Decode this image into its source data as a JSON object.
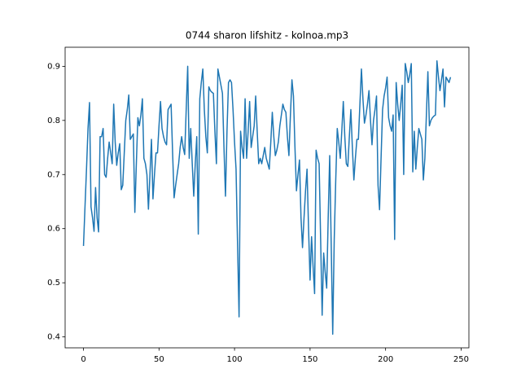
{
  "chart_data": {
    "type": "line",
    "title": "0744 sharon lifshitz - kolnoa.mp3",
    "x": [
      0,
      1,
      2,
      3,
      4,
      5,
      6,
      7,
      8,
      9,
      10,
      11,
      12,
      13,
      14,
      15,
      16,
      17,
      18,
      19,
      20,
      21,
      22,
      23,
      24,
      25,
      26,
      27,
      28,
      29,
      30,
      31,
      32,
      33,
      34,
      35,
      36,
      37,
      38,
      39,
      40,
      41,
      42,
      43,
      44,
      45,
      46,
      47,
      48,
      49,
      50,
      51,
      52,
      53,
      54,
      55,
      56,
      57,
      58,
      59,
      60,
      61,
      62,
      63,
      64,
      65,
      66,
      67,
      68,
      69,
      70,
      71,
      72,
      73,
      74,
      75,
      76,
      77,
      78,
      79,
      80,
      81,
      82,
      83,
      84,
      85,
      86,
      87,
      88,
      89,
      90,
      91,
      92,
      93,
      94,
      95,
      96,
      97,
      98,
      99,
      100,
      101,
      102,
      103,
      104,
      105,
      106,
      107,
      108,
      109,
      110,
      111,
      112,
      113,
      114,
      115,
      116,
      117,
      118,
      119,
      120,
      121,
      122,
      123,
      124,
      125,
      126,
      127,
      128,
      129,
      130,
      131,
      132,
      133,
      134,
      135,
      136,
      137,
      138,
      139,
      140,
      141,
      142,
      143,
      144,
      145,
      146,
      147,
      148,
      149,
      150,
      151,
      152,
      153,
      154,
      155,
      156,
      157,
      158,
      159,
      160,
      161,
      162,
      163,
      164,
      165,
      166,
      167,
      168,
      169,
      170,
      171,
      172,
      173,
      174,
      175,
      176,
      177,
      178,
      179,
      180,
      181,
      182,
      183,
      184,
      185,
      186,
      187,
      188,
      189,
      190,
      191,
      192,
      193,
      194,
      195,
      196,
      197,
      198,
      199,
      200,
      201,
      202,
      203,
      204,
      205,
      206,
      207,
      208,
      209,
      210,
      211,
      212,
      213,
      214,
      215,
      216,
      217,
      218,
      219,
      220,
      221,
      222,
      223,
      224,
      225,
      226,
      227,
      228,
      229,
      230,
      231,
      232,
      233,
      234,
      235,
      236,
      237,
      238,
      239,
      240,
      241,
      242,
      243
    ],
    "series": [
      {
        "color": "#1f77b4",
        "values": [
          0.568,
          0.64,
          0.71,
          0.785,
          0.833,
          0.64,
          0.62,
          0.595,
          0.676,
          0.62,
          0.594,
          0.77,
          0.77,
          0.785,
          0.7,
          0.695,
          0.73,
          0.76,
          0.74,
          0.72,
          0.83,
          0.76,
          0.717,
          0.74,
          0.757,
          0.672,
          0.68,
          0.74,
          0.8,
          0.82,
          0.847,
          0.765,
          0.77,
          0.775,
          0.63,
          0.72,
          0.805,
          0.79,
          0.81,
          0.84,
          0.73,
          0.72,
          0.7,
          0.636,
          0.7,
          0.765,
          0.655,
          0.7,
          0.74,
          0.74,
          0.79,
          0.835,
          0.785,
          0.77,
          0.76,
          0.755,
          0.82,
          0.825,
          0.83,
          0.74,
          0.657,
          0.68,
          0.7,
          0.72,
          0.75,
          0.77,
          0.75,
          0.737,
          0.82,
          0.9,
          0.73,
          0.785,
          0.72,
          0.66,
          0.72,
          0.77,
          0.59,
          0.84,
          0.87,
          0.895,
          0.82,
          0.77,
          0.74,
          0.862,
          0.855,
          0.852,
          0.85,
          0.78,
          0.72,
          0.895,
          0.88,
          0.865,
          0.85,
          0.75,
          0.66,
          0.78,
          0.87,
          0.875,
          0.87,
          0.82,
          0.76,
          0.71,
          0.57,
          0.437,
          0.78,
          0.75,
          0.73,
          0.84,
          0.73,
          0.78,
          0.835,
          0.75,
          0.77,
          0.79,
          0.845,
          0.78,
          0.72,
          0.73,
          0.72,
          0.735,
          0.75,
          0.73,
          0.72,
          0.71,
          0.76,
          0.815,
          0.77,
          0.735,
          0.745,
          0.76,
          0.79,
          0.81,
          0.83,
          0.82,
          0.815,
          0.77,
          0.735,
          0.81,
          0.875,
          0.845,
          0.75,
          0.67,
          0.7,
          0.727,
          0.62,
          0.565,
          0.62,
          0.67,
          0.71,
          0.6,
          0.505,
          0.585,
          0.53,
          0.48,
          0.745,
          0.73,
          0.72,
          0.58,
          0.44,
          0.555,
          0.52,
          0.49,
          0.62,
          0.735,
          0.57,
          0.405,
          0.58,
          0.69,
          0.785,
          0.76,
          0.73,
          0.78,
          0.835,
          0.77,
          0.72,
          0.715,
          0.77,
          0.82,
          0.75,
          0.69,
          0.73,
          0.765,
          0.765,
          0.83,
          0.895,
          0.84,
          0.795,
          0.81,
          0.83,
          0.855,
          0.8,
          0.755,
          0.8,
          0.82,
          0.845,
          0.68,
          0.635,
          0.73,
          0.82,
          0.845,
          0.86,
          0.88,
          0.805,
          0.79,
          0.78,
          0.81,
          0.58,
          0.87,
          0.83,
          0.8,
          0.83,
          0.865,
          0.7,
          0.905,
          0.89,
          0.87,
          0.885,
          0.905,
          0.705,
          0.78,
          0.71,
          0.75,
          0.785,
          0.775,
          0.765,
          0.69,
          0.73,
          0.81,
          0.89,
          0.79,
          0.8,
          0.805,
          0.808,
          0.81,
          0.91,
          0.88,
          0.855,
          0.875,
          0.895,
          0.825,
          0.88,
          0.875,
          0.87,
          0.88
        ]
      }
    ],
    "xlim": [
      -12.15,
      255.15
    ],
    "xticks": [
      0,
      50,
      100,
      150,
      200,
      250
    ],
    "ylim": [
      0.3798,
      0.9352
    ],
    "yticks": [
      0.4,
      0.5,
      0.6,
      0.7,
      0.8,
      0.9
    ]
  }
}
